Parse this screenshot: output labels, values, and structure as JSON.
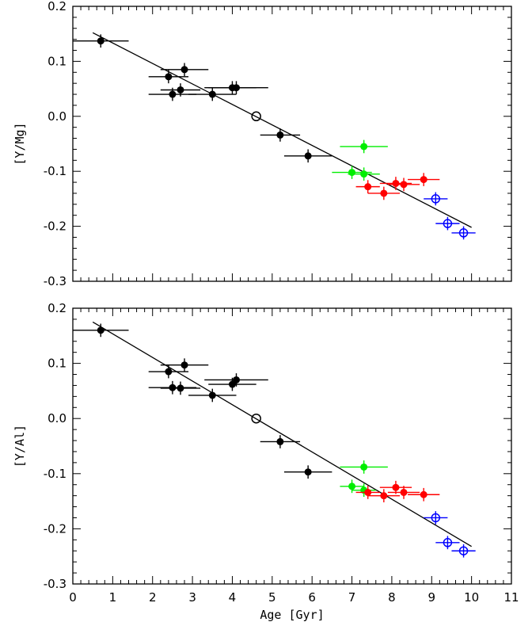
{
  "chart_data": [
    {
      "type": "scatter",
      "panel": "top",
      "xlabel": "",
      "ylabel": "[Y/Mg]",
      "xlim": [
        0,
        11
      ],
      "ylim": [
        -0.3,
        0.2
      ],
      "x_ticks": [],
      "y_ticks": [
        "-0.3",
        "-0.2",
        "-0.1",
        "0.0",
        "0.1",
        "0.2"
      ],
      "fit_line": {
        "x": [
          0.5,
          10.0
        ],
        "y": [
          0.152,
          -0.202
        ]
      },
      "series": [
        {
          "name": "black",
          "color": "#000000",
          "marker": "filled",
          "points": [
            {
              "x": 0.7,
              "y": 0.137,
              "xerr": 0.7,
              "yerr": 0.012
            },
            {
              "x": 2.4,
              "y": 0.072,
              "xerr": 0.5,
              "yerr": 0.012
            },
            {
              "x": 2.8,
              "y": 0.085,
              "xerr": 0.6,
              "yerr": 0.012
            },
            {
              "x": 2.5,
              "y": 0.04,
              "xerr": 0.6,
              "yerr": 0.012
            },
            {
              "x": 2.7,
              "y": 0.048,
              "xerr": 0.5,
              "yerr": 0.012
            },
            {
              "x": 3.5,
              "y": 0.04,
              "xerr": 0.6,
              "yerr": 0.012
            },
            {
              "x": 4.0,
              "y": 0.052,
              "xerr": 0.6,
              "yerr": 0.012
            },
            {
              "x": 4.1,
              "y": 0.052,
              "xerr": 0.8,
              "yerr": 0.012
            },
            {
              "x": 5.2,
              "y": -0.034,
              "xerr": 0.5,
              "yerr": 0.012
            },
            {
              "x": 5.9,
              "y": -0.072,
              "xerr": 0.6,
              "yerr": 0.012
            }
          ]
        },
        {
          "name": "sun",
          "color": "#000000",
          "marker": "open",
          "points": [
            {
              "x": 4.6,
              "y": 0.0,
              "xerr": 0,
              "yerr": 0
            }
          ]
        },
        {
          "name": "green",
          "color": "#00ee00",
          "marker": "filled",
          "points": [
            {
              "x": 7.3,
              "y": -0.055,
              "xerr": 0.6,
              "yerr": 0.012
            },
            {
              "x": 7.0,
              "y": -0.102,
              "xerr": 0.5,
              "yerr": 0.012
            },
            {
              "x": 7.3,
              "y": -0.105,
              "xerr": 0.4,
              "yerr": 0.012
            }
          ]
        },
        {
          "name": "red",
          "color": "#ff0000",
          "marker": "filled",
          "points": [
            {
              "x": 7.4,
              "y": -0.128,
              "xerr": 0.3,
              "yerr": 0.012
            },
            {
              "x": 7.8,
              "y": -0.14,
              "xerr": 0.4,
              "yerr": 0.012
            },
            {
              "x": 8.1,
              "y": -0.122,
              "xerr": 0.4,
              "yerr": 0.012
            },
            {
              "x": 8.3,
              "y": -0.124,
              "xerr": 0.4,
              "yerr": 0.012
            },
            {
              "x": 8.8,
              "y": -0.115,
              "xerr": 0.4,
              "yerr": 0.012
            }
          ]
        },
        {
          "name": "blue",
          "color": "#0000ff",
          "marker": "open",
          "points": [
            {
              "x": 9.1,
              "y": -0.15,
              "xerr": 0.3,
              "yerr": 0.012
            },
            {
              "x": 9.4,
              "y": -0.195,
              "xerr": 0.3,
              "yerr": 0.012
            },
            {
              "x": 9.8,
              "y": -0.212,
              "xerr": 0.3,
              "yerr": 0.012
            }
          ]
        }
      ]
    },
    {
      "type": "scatter",
      "panel": "bottom",
      "xlabel": "Age [Gyr]",
      "ylabel": "[Y/Al]",
      "xlim": [
        0,
        11
      ],
      "ylim": [
        -0.3,
        0.2
      ],
      "x_ticks": [
        "0",
        "1",
        "2",
        "3",
        "4",
        "5",
        "6",
        "7",
        "8",
        "9",
        "10",
        "11"
      ],
      "y_ticks": [
        "-0.3",
        "-0.2",
        "-0.1",
        "0.0",
        "0.1",
        "0.2"
      ],
      "fit_line": {
        "x": [
          0.5,
          10.0
        ],
        "y": [
          0.175,
          -0.232
        ]
      },
      "series": [
        {
          "name": "black",
          "color": "#000000",
          "marker": "filled",
          "points": [
            {
              "x": 0.7,
              "y": 0.16,
              "xerr": 0.7,
              "yerr": 0.012
            },
            {
              "x": 2.4,
              "y": 0.085,
              "xerr": 0.5,
              "yerr": 0.012
            },
            {
              "x": 2.8,
              "y": 0.097,
              "xerr": 0.6,
              "yerr": 0.012
            },
            {
              "x": 2.5,
              "y": 0.056,
              "xerr": 0.6,
              "yerr": 0.012
            },
            {
              "x": 2.7,
              "y": 0.055,
              "xerr": 0.5,
              "yerr": 0.012
            },
            {
              "x": 3.5,
              "y": 0.042,
              "xerr": 0.6,
              "yerr": 0.012
            },
            {
              "x": 4.0,
              "y": 0.062,
              "xerr": 0.6,
              "yerr": 0.012
            },
            {
              "x": 4.1,
              "y": 0.07,
              "xerr": 0.8,
              "yerr": 0.012
            },
            {
              "x": 5.2,
              "y": -0.042,
              "xerr": 0.5,
              "yerr": 0.012
            },
            {
              "x": 5.9,
              "y": -0.097,
              "xerr": 0.6,
              "yerr": 0.012
            }
          ]
        },
        {
          "name": "sun",
          "color": "#000000",
          "marker": "open",
          "points": [
            {
              "x": 4.6,
              "y": 0.0,
              "xerr": 0,
              "yerr": 0
            }
          ]
        },
        {
          "name": "green",
          "color": "#00ee00",
          "marker": "filled",
          "points": [
            {
              "x": 7.3,
              "y": -0.088,
              "xerr": 0.6,
              "yerr": 0.012
            },
            {
              "x": 7.0,
              "y": -0.123,
              "xerr": 0.3,
              "yerr": 0.012
            },
            {
              "x": 7.3,
              "y": -0.13,
              "xerr": 0.3,
              "yerr": 0.012
            }
          ]
        },
        {
          "name": "red",
          "color": "#ff0000",
          "marker": "filled",
          "points": [
            {
              "x": 7.4,
              "y": -0.134,
              "xerr": 0.3,
              "yerr": 0.012
            },
            {
              "x": 7.8,
              "y": -0.14,
              "xerr": 0.4,
              "yerr": 0.012
            },
            {
              "x": 8.1,
              "y": -0.125,
              "xerr": 0.4,
              "yerr": 0.012
            },
            {
              "x": 8.3,
              "y": -0.134,
              "xerr": 0.4,
              "yerr": 0.012
            },
            {
              "x": 8.8,
              "y": -0.138,
              "xerr": 0.4,
              "yerr": 0.012
            }
          ]
        },
        {
          "name": "blue",
          "color": "#0000ff",
          "marker": "open",
          "points": [
            {
              "x": 9.1,
              "y": -0.18,
              "xerr": 0.3,
              "yerr": 0.012
            },
            {
              "x": 9.4,
              "y": -0.225,
              "xerr": 0.3,
              "yerr": 0.012
            },
            {
              "x": 9.8,
              "y": -0.24,
              "xerr": 0.3,
              "yerr": 0.012
            }
          ]
        }
      ]
    }
  ]
}
